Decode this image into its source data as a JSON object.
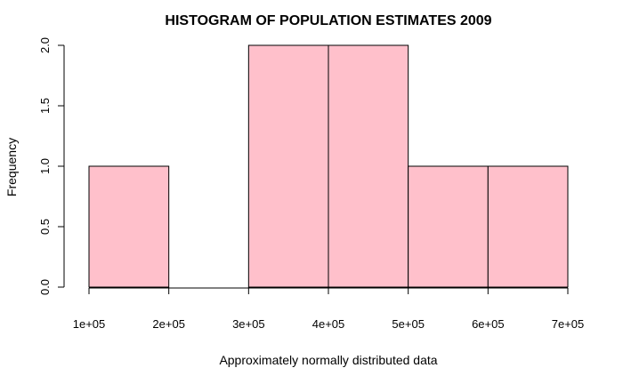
{
  "chart_data": {
    "type": "bar",
    "title": "HISTOGRAM OF POPULATION ESTIMATES 2009",
    "xlabel": "Approximately normally distributed data",
    "ylabel": "Frequency",
    "bins": [
      {
        "from": 100000,
        "to": 200000,
        "count": 1
      },
      {
        "from": 200000,
        "to": 300000,
        "count": 0
      },
      {
        "from": 300000,
        "to": 400000,
        "count": 2
      },
      {
        "from": 400000,
        "to": 500000,
        "count": 2
      },
      {
        "from": 500000,
        "to": 600000,
        "count": 1
      },
      {
        "from": 600000,
        "to": 700000,
        "count": 1
      }
    ],
    "xlim": [
      100000,
      700000
    ],
    "ylim": [
      0,
      2
    ],
    "x_ticks": [
      100000,
      200000,
      300000,
      400000,
      500000,
      600000,
      700000
    ],
    "x_tick_labels": [
      "1e+05",
      "2e+05",
      "3e+05",
      "4e+05",
      "5e+05",
      "6e+05",
      "7e+05"
    ],
    "y_ticks": [
      0,
      0.5,
      1,
      1.5,
      2
    ],
    "y_tick_labels": [
      "0.0",
      "0.5",
      "1.0",
      "1.5",
      "2.0"
    ],
    "bar_color": "#ffc0cb",
    "bar_border_color": "#000000",
    "grid": false,
    "legend": "none"
  }
}
